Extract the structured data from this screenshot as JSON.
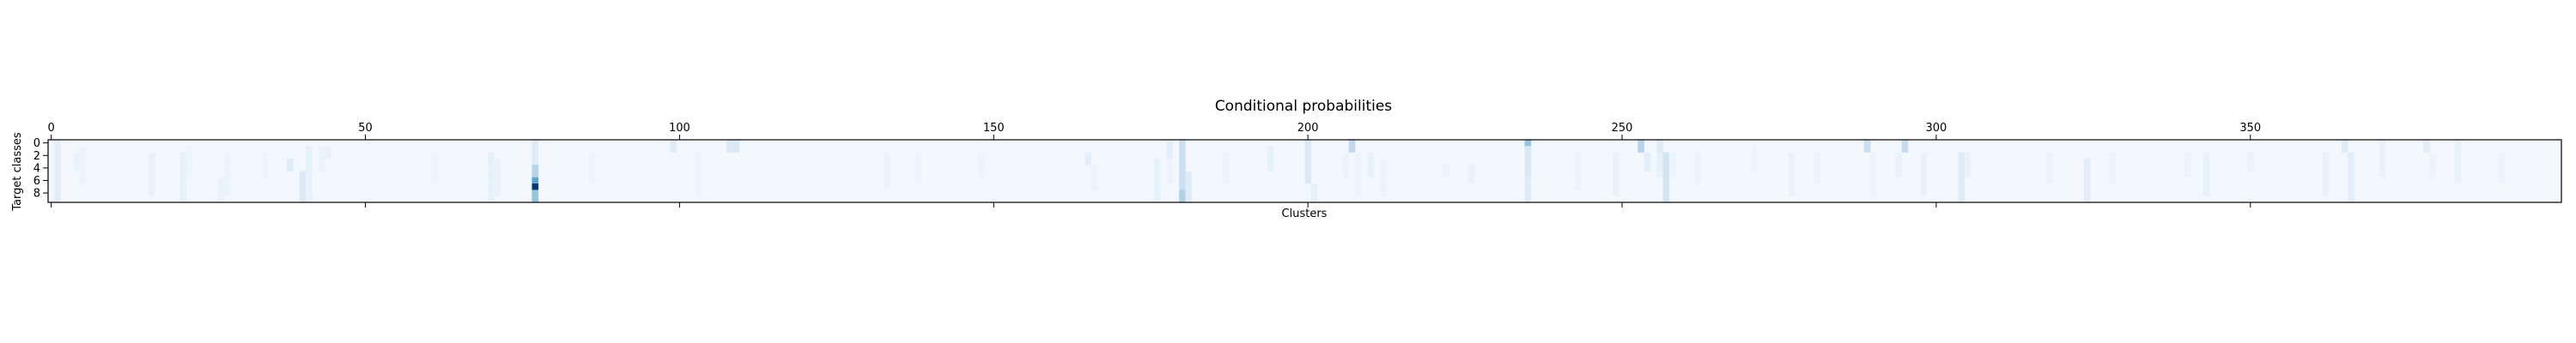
{
  "chart_data": {
    "type": "heatmap",
    "title": "Conditional probabilities",
    "xlabel": "Clusters",
    "ylabel": "Target classes",
    "colormap": "Blues",
    "n_clusters": 400,
    "n_classes": 10,
    "xlim": [
      0,
      400
    ],
    "ylim": [
      0,
      9
    ],
    "x_ticks": [
      0,
      50,
      100,
      150,
      200,
      250,
      300,
      350
    ],
    "y_ticks": [
      0,
      2,
      4,
      6,
      8
    ],
    "x_tick_position": "top-and-bottom",
    "grid": false,
    "value_range": [
      0,
      1
    ],
    "background_value": 0.02,
    "cells": [
      {
        "cluster": 1,
        "classes": [
          0,
          1,
          2,
          3,
          4,
          5,
          6,
          7,
          8,
          9
        ],
        "value": 0.1
      },
      {
        "cluster": 4,
        "classes": [
          2,
          3,
          4
        ],
        "value": 0.07
      },
      {
        "cluster": 5,
        "classes": [
          1,
          2,
          3,
          4,
          5,
          6
        ],
        "value": 0.06
      },
      {
        "cluster": 16,
        "classes": [
          2,
          3,
          4,
          5,
          6,
          7,
          8
        ],
        "value": 0.07
      },
      {
        "cluster": 21,
        "classes": [
          2,
          3,
          4,
          5,
          6,
          7,
          8,
          9
        ],
        "value": 0.08
      },
      {
        "cluster": 22,
        "classes": [
          1,
          2,
          3,
          4,
          5
        ],
        "value": 0.05
      },
      {
        "cluster": 27,
        "classes": [
          6,
          7,
          8,
          9
        ],
        "value": 0.07
      },
      {
        "cluster": 28,
        "classes": [
          2,
          3,
          4,
          5,
          6,
          7,
          8
        ],
        "value": 0.06
      },
      {
        "cluster": 34,
        "classes": [
          2,
          3,
          4,
          5
        ],
        "value": 0.05
      },
      {
        "cluster": 38,
        "classes": [
          3,
          4
        ],
        "value": 0.12
      },
      {
        "cluster": 40,
        "classes": [
          5,
          6,
          7,
          8,
          9
        ],
        "value": 0.14
      },
      {
        "cluster": 41,
        "classes": [
          1,
          2,
          3,
          4,
          5,
          6,
          7,
          8,
          9
        ],
        "value": 0.08
      },
      {
        "cluster": 43,
        "classes": [
          1,
          2,
          3,
          4
        ],
        "value": 0.06
      },
      {
        "cluster": 44,
        "classes": [
          1,
          2
        ],
        "value": 0.07
      },
      {
        "cluster": 61,
        "classes": [
          2,
          3,
          4,
          5,
          6
        ],
        "value": 0.05
      },
      {
        "cluster": 70,
        "classes": [
          2,
          3,
          4,
          5,
          6,
          7,
          8,
          9
        ],
        "value": 0.08
      },
      {
        "cluster": 71,
        "classes": [
          3,
          4,
          5,
          6,
          7,
          8
        ],
        "value": 0.07
      },
      {
        "cluster": 77,
        "classes": [
          0,
          1,
          2,
          3
        ],
        "value": 0.12
      },
      {
        "cluster": 77,
        "classes": [
          4,
          5
        ],
        "value": 0.3
      },
      {
        "cluster": 77,
        "classes": [
          6
        ],
        "value": 0.55
      },
      {
        "cluster": 77,
        "classes": [
          7
        ],
        "value": 0.98
      },
      {
        "cluster": 77,
        "classes": [
          8,
          9
        ],
        "value": 0.4
      },
      {
        "cluster": 86,
        "classes": [
          2,
          3,
          4,
          5,
          6
        ],
        "value": 0.05
      },
      {
        "cluster": 99,
        "classes": [
          0,
          1
        ],
        "value": 0.12
      },
      {
        "cluster": 103,
        "classes": [
          2,
          3,
          4,
          5,
          6,
          7,
          8
        ],
        "value": 0.06
      },
      {
        "cluster": 108,
        "classes": [
          0,
          1
        ],
        "value": 0.14
      },
      {
        "cluster": 109,
        "classes": [
          0,
          1
        ],
        "value": 0.14
      },
      {
        "cluster": 133,
        "classes": [
          2,
          3,
          4,
          5,
          6,
          7
        ],
        "value": 0.06
      },
      {
        "cluster": 138,
        "classes": [
          2,
          3,
          4,
          5,
          6
        ],
        "value": 0.05
      },
      {
        "cluster": 148,
        "classes": [
          2,
          3,
          4,
          5
        ],
        "value": 0.06
      },
      {
        "cluster": 165,
        "classes": [
          2,
          3
        ],
        "value": 0.1
      },
      {
        "cluster": 166,
        "classes": [
          4,
          5,
          6,
          7
        ],
        "value": 0.06
      },
      {
        "cluster": 176,
        "classes": [
          3,
          4,
          5,
          6,
          7,
          8,
          9
        ],
        "value": 0.08
      },
      {
        "cluster": 178,
        "classes": [
          0,
          1,
          2
        ],
        "value": 0.1
      },
      {
        "cluster": 178,
        "classes": [
          3,
          4,
          5,
          6
        ],
        "value": 0.06
      },
      {
        "cluster": 180,
        "classes": [
          0,
          1,
          2,
          3,
          4,
          5,
          6,
          7
        ],
        "value": 0.22
      },
      {
        "cluster": 180,
        "classes": [
          8,
          9
        ],
        "value": 0.32
      },
      {
        "cluster": 181,
        "classes": [
          5,
          6,
          7,
          8,
          9
        ],
        "value": 0.12
      },
      {
        "cluster": 187,
        "classes": [
          2,
          3,
          4,
          5,
          6
        ],
        "value": 0.06
      },
      {
        "cluster": 194,
        "classes": [
          1,
          2,
          3,
          4
        ],
        "value": 0.08
      },
      {
        "cluster": 200,
        "classes": [
          0,
          1,
          2,
          3,
          4,
          5,
          6
        ],
        "value": 0.14
      },
      {
        "cluster": 201,
        "classes": [
          7,
          8,
          9
        ],
        "value": 0.08
      },
      {
        "cluster": 206,
        "classes": [
          2,
          3,
          4,
          5
        ],
        "value": 0.06
      },
      {
        "cluster": 207,
        "classes": [
          0,
          1
        ],
        "value": 0.26
      },
      {
        "cluster": 208,
        "classes": [
          2,
          3,
          4,
          5,
          6,
          7,
          8
        ],
        "value": 0.06
      },
      {
        "cluster": 210,
        "classes": [
          2,
          3,
          4,
          5
        ],
        "value": 0.08
      },
      {
        "cluster": 212,
        "classes": [
          3,
          4,
          5,
          6,
          7,
          8
        ],
        "value": 0.06
      },
      {
        "cluster": 222,
        "classes": [
          4,
          5
        ],
        "value": 0.06
      },
      {
        "cluster": 226,
        "classes": [
          4,
          5,
          6
        ],
        "value": 0.07
      },
      {
        "cluster": 235,
        "classes": [
          0
        ],
        "value": 0.4
      },
      {
        "cluster": 235,
        "classes": [
          1,
          2,
          3,
          4,
          5
        ],
        "value": 0.15
      },
      {
        "cluster": 235,
        "classes": [
          6,
          7,
          8,
          9
        ],
        "value": 0.12
      },
      {
        "cluster": 243,
        "classes": [
          2,
          3,
          4,
          5,
          6,
          7
        ],
        "value": 0.06
      },
      {
        "cluster": 249,
        "classes": [
          2,
          3,
          4,
          5,
          6,
          7,
          8
        ],
        "value": 0.07
      },
      {
        "cluster": 253,
        "classes": [
          0,
          1
        ],
        "value": 0.3
      },
      {
        "cluster": 254,
        "classes": [
          2,
          3,
          4
        ],
        "value": 0.1
      },
      {
        "cluster": 256,
        "classes": [
          0,
          1
        ],
        "value": 0.12
      },
      {
        "cluster": 256,
        "classes": [
          2,
          3,
          4,
          5
        ],
        "value": 0.08
      },
      {
        "cluster": 257,
        "classes": [
          2,
          3,
          4,
          5,
          6,
          7,
          8,
          9
        ],
        "value": 0.18
      },
      {
        "cluster": 258,
        "classes": [
          2,
          3,
          4,
          5
        ],
        "value": 0.06
      },
      {
        "cluster": 262,
        "classes": [
          2,
          3,
          4,
          5,
          6
        ],
        "value": 0.06
      },
      {
        "cluster": 271,
        "classes": [
          1,
          2,
          3,
          4
        ],
        "value": 0.05
      },
      {
        "cluster": 277,
        "classes": [
          2,
          3,
          4,
          5,
          6,
          7,
          8
        ],
        "value": 0.07
      },
      {
        "cluster": 281,
        "classes": [
          2,
          3,
          4,
          5,
          6
        ],
        "value": 0.06
      },
      {
        "cluster": 289,
        "classes": [
          0,
          1
        ],
        "value": 0.22
      },
      {
        "cluster": 290,
        "classes": [
          2,
          3,
          4,
          5,
          6,
          7,
          8
        ],
        "value": 0.06
      },
      {
        "cluster": 294,
        "classes": [
          2,
          3,
          4,
          5
        ],
        "value": 0.07
      },
      {
        "cluster": 295,
        "classes": [
          0,
          1
        ],
        "value": 0.24
      },
      {
        "cluster": 298,
        "classes": [
          2,
          3,
          4,
          5,
          6,
          7,
          8
        ],
        "value": 0.07
      },
      {
        "cluster": 304,
        "classes": [
          2,
          3,
          4,
          5,
          6,
          7,
          8,
          9
        ],
        "value": 0.12
      },
      {
        "cluster": 305,
        "classes": [
          2,
          3,
          4,
          5
        ],
        "value": 0.07
      },
      {
        "cluster": 318,
        "classes": [
          2,
          3,
          4,
          5,
          6
        ],
        "value": 0.06
      },
      {
        "cluster": 324,
        "classes": [
          3,
          4,
          5,
          6,
          7,
          8,
          9
        ],
        "value": 0.1
      },
      {
        "cluster": 328,
        "classes": [
          2,
          3,
          4,
          5,
          6
        ],
        "value": 0.06
      },
      {
        "cluster": 340,
        "classes": [
          2,
          3,
          4,
          5
        ],
        "value": 0.06
      },
      {
        "cluster": 343,
        "classes": [
          2,
          3,
          4,
          5,
          6,
          7,
          8
        ],
        "value": 0.08
      },
      {
        "cluster": 350,
        "classes": [
          2,
          3,
          4
        ],
        "value": 0.07
      },
      {
        "cluster": 362,
        "classes": [
          2,
          3,
          4,
          5,
          6,
          7,
          8
        ],
        "value": 0.07
      },
      {
        "cluster": 365,
        "classes": [
          0,
          1
        ],
        "value": 0.12
      },
      {
        "cluster": 366,
        "classes": [
          2,
          3,
          4,
          5,
          6,
          7,
          8,
          9
        ],
        "value": 0.1
      },
      {
        "cluster": 371,
        "classes": [
          0,
          1,
          2,
          3,
          4,
          5
        ],
        "value": 0.07
      },
      {
        "cluster": 378,
        "classes": [
          0,
          1
        ],
        "value": 0.1
      },
      {
        "cluster": 379,
        "classes": [
          2,
          3,
          4,
          5
        ],
        "value": 0.06
      },
      {
        "cluster": 383,
        "classes": [
          0,
          1,
          2,
          3,
          4,
          5,
          6
        ],
        "value": 0.08
      },
      {
        "cluster": 390,
        "classes": [
          2,
          3,
          4,
          5,
          6
        ],
        "value": 0.06
      }
    ]
  }
}
